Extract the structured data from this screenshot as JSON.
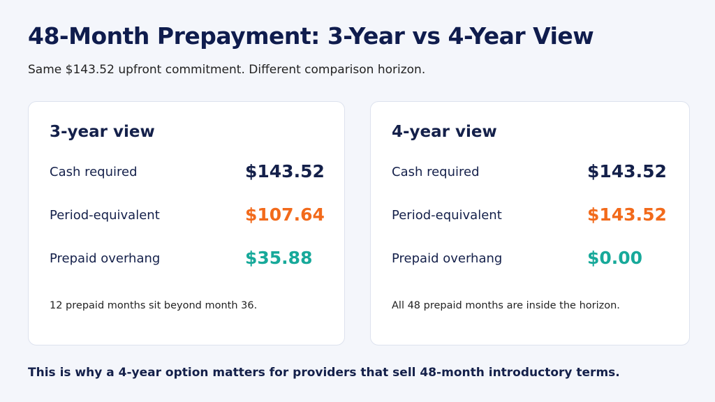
{
  "header": {
    "title": "48-Month Prepayment: 3-Year vs 4-Year View",
    "subtitle": "Same $143.52 upfront commitment. Different comparison horizon."
  },
  "cards": [
    {
      "title": "3-year view",
      "rows": [
        {
          "label": "Cash required",
          "value": "$143.52"
        },
        {
          "label": "Period-equivalent",
          "value": "$107.64"
        },
        {
          "label": "Prepaid overhang",
          "value": "$35.88"
        }
      ],
      "note": "12 prepaid months sit beyond month 36."
    },
    {
      "title": "4-year view",
      "rows": [
        {
          "label": "Cash required",
          "value": "$143.52"
        },
        {
          "label": "Period-equivalent",
          "value": "$143.52"
        },
        {
          "label": "Prepaid overhang",
          "value": "$0.00"
        }
      ],
      "note": "All 48 prepaid months are inside the horizon."
    }
  ],
  "footer": "This is why a 4-year option matters for providers that sell 48-month introductory terms."
}
